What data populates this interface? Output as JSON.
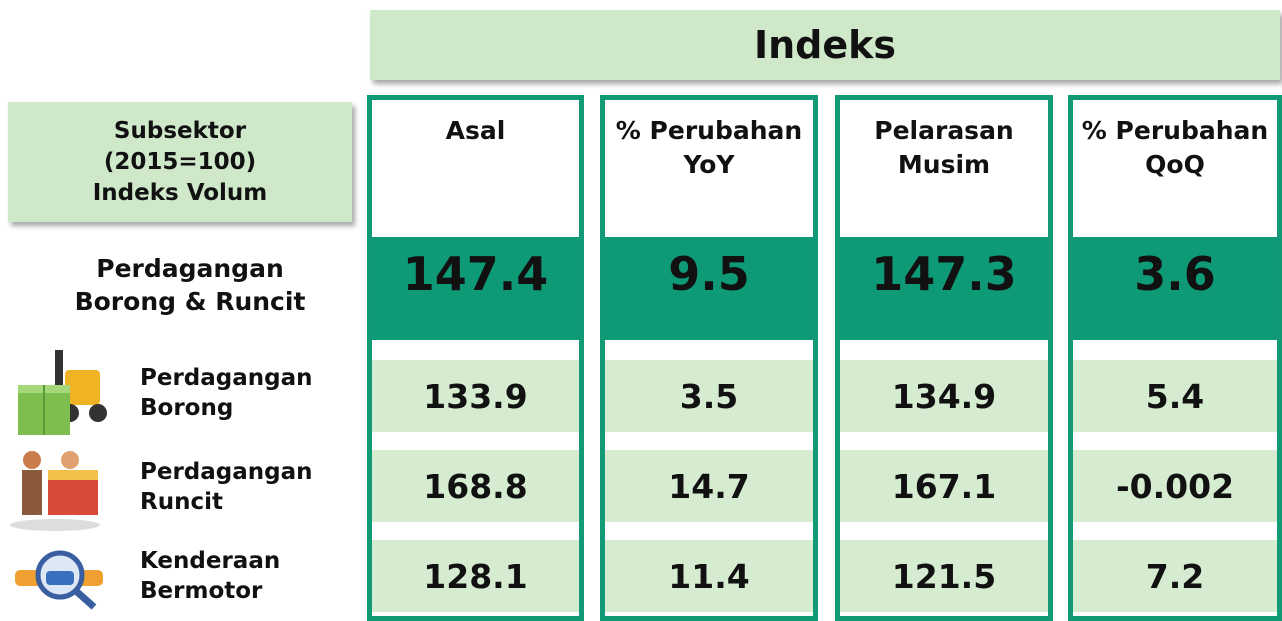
{
  "header": {
    "title": "Indeks"
  },
  "row_header": [
    "Subsektor",
    "(2015=100)",
    "Indeks Volum"
  ],
  "columns": [
    [
      "Asal"
    ],
    [
      "% Perubahan",
      "YoY"
    ],
    [
      "Pelarasan",
      "Musim"
    ],
    [
      "% Perubahan",
      "QoQ"
    ]
  ],
  "total": {
    "label": [
      "Perdagangan",
      "Borong & Runcit"
    ],
    "values": [
      "147.4",
      "9.5",
      "147.3",
      "3.6"
    ]
  },
  "rows": [
    {
      "label": [
        "Perdagangan",
        "Borong"
      ],
      "values": [
        "133.9",
        "3.5",
        "134.9",
        "5.4"
      ]
    },
    {
      "label": [
        "Perdagangan",
        "Runcit"
      ],
      "values": [
        "168.8",
        "14.7",
        "167.1",
        "-0.002"
      ]
    },
    {
      "label": [
        "Kenderaan",
        "Bermotor"
      ],
      "values": [
        "128.1",
        "11.4",
        "121.5",
        "7.2"
      ]
    }
  ]
}
